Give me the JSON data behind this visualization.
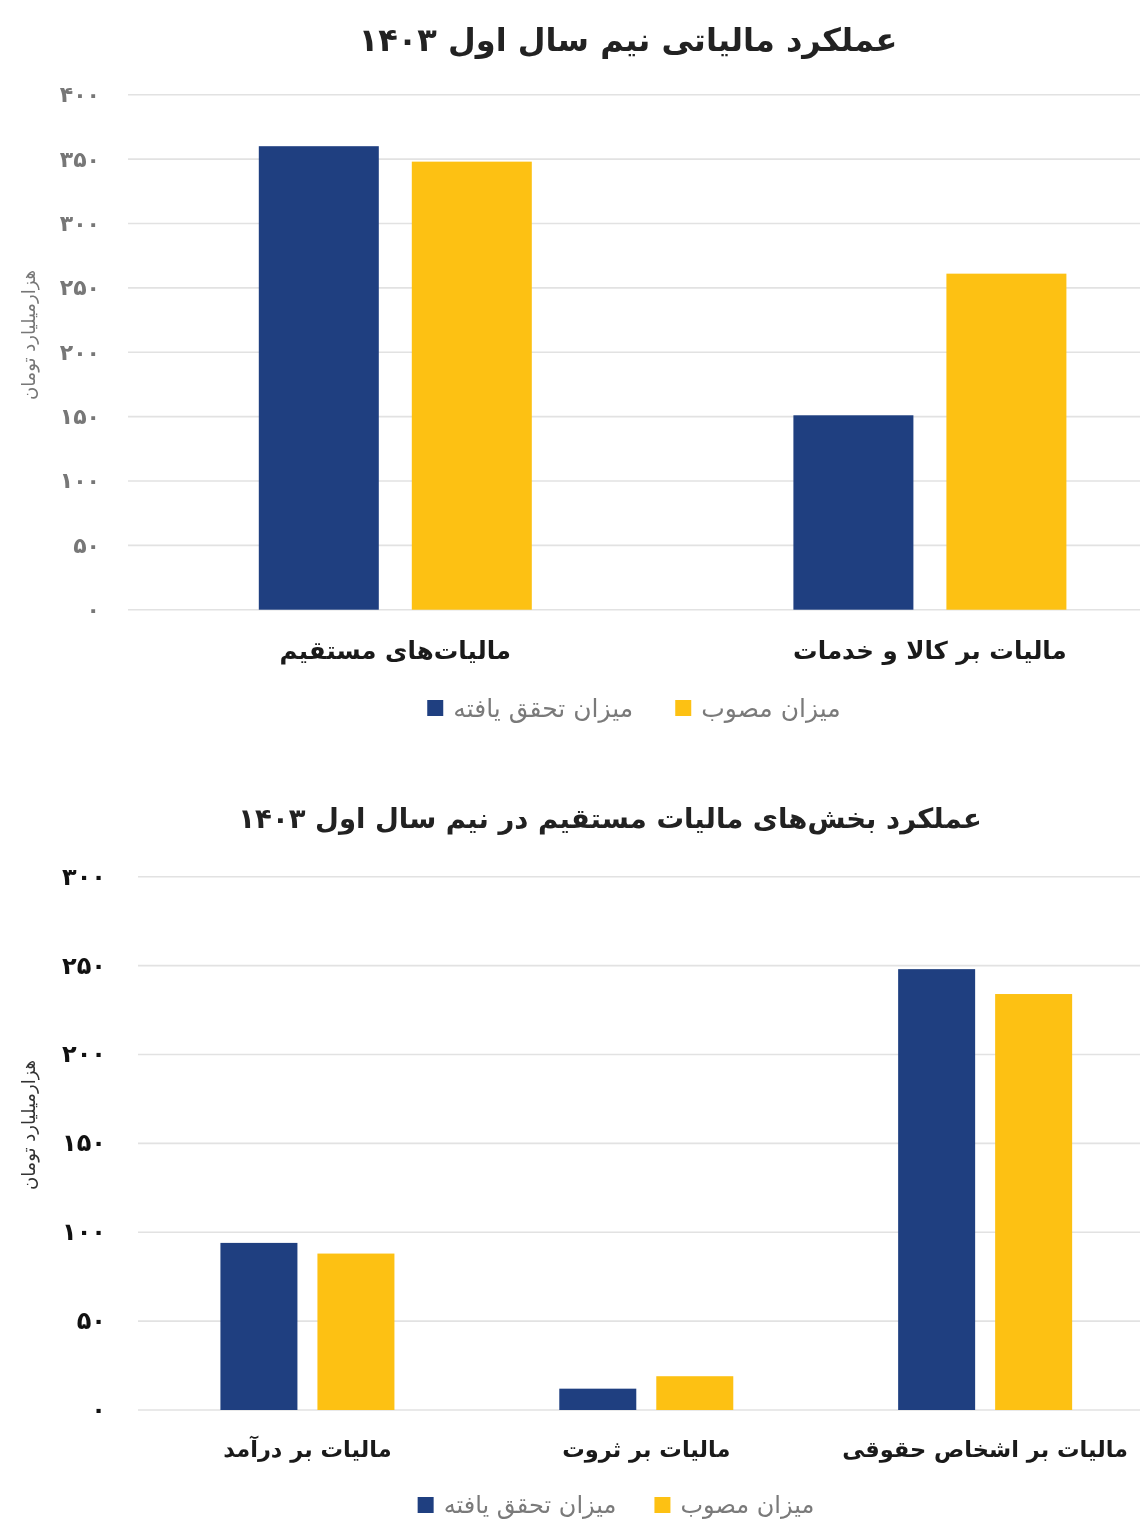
{
  "chart_data": [
    {
      "type": "bar",
      "title": "عملکرد مالیاتی نیم سال اول ۱۴۰۳",
      "ylabel": "هزارمیلیارد تومان",
      "categories": [
        "مالیات‌های مستقیم",
        "مالیات بر کالا و خدمات"
      ],
      "series": [
        {
          "name": "میزان تحقق یافته",
          "color": "#1f3f80",
          "values": [
            360,
            151
          ]
        },
        {
          "name": "میزان مصوب",
          "color": "#fdc113",
          "values": [
            348,
            261
          ]
        }
      ],
      "ylim": [
        0,
        400
      ],
      "yticks": [
        {
          "value": 0,
          "label": "۰"
        },
        {
          "value": 50,
          "label": "۵۰"
        },
        {
          "value": 100,
          "label": "۱۰۰"
        },
        {
          "value": 150,
          "label": "۱۵۰"
        },
        {
          "value": 200,
          "label": "۲۰۰"
        },
        {
          "value": 250,
          "label": "۲۵۰"
        },
        {
          "value": 300,
          "label": "۳۰۰"
        },
        {
          "value": 350,
          "label": "۳۵۰"
        },
        {
          "value": 400,
          "label": "۴۰۰"
        }
      ],
      "grid": "y",
      "legend": "bottom"
    },
    {
      "type": "bar",
      "title": "عملکرد بخش‌های مالیات مستقیم در نیم سال اول ۱۴۰۳",
      "ylabel": "هزارمیلیارد تومان",
      "categories": [
        "مالیات بر درآمد",
        "مالیات بر ثروت",
        "مالیات بر اشخاص حقوقی"
      ],
      "series": [
        {
          "name": "میزان تحقق یافته",
          "color": "#1f3f80",
          "values": [
            94,
            12,
            248
          ]
        },
        {
          "name": "میزان مصوب",
          "color": "#fdc113",
          "values": [
            88,
            19,
            234
          ]
        }
      ],
      "ylim": [
        0,
        300
      ],
      "yticks": [
        {
          "value": 0,
          "label": "۰"
        },
        {
          "value": 50,
          "label": "۵۰"
        },
        {
          "value": 100,
          "label": "۱۰۰"
        },
        {
          "value": 150,
          "label": "۱۵۰"
        },
        {
          "value": 200,
          "label": "۲۰۰"
        },
        {
          "value": 250,
          "label": "۲۵۰"
        },
        {
          "value": 300,
          "label": "۳۰۰"
        }
      ],
      "grid": "y",
      "legend": "bottom"
    }
  ]
}
